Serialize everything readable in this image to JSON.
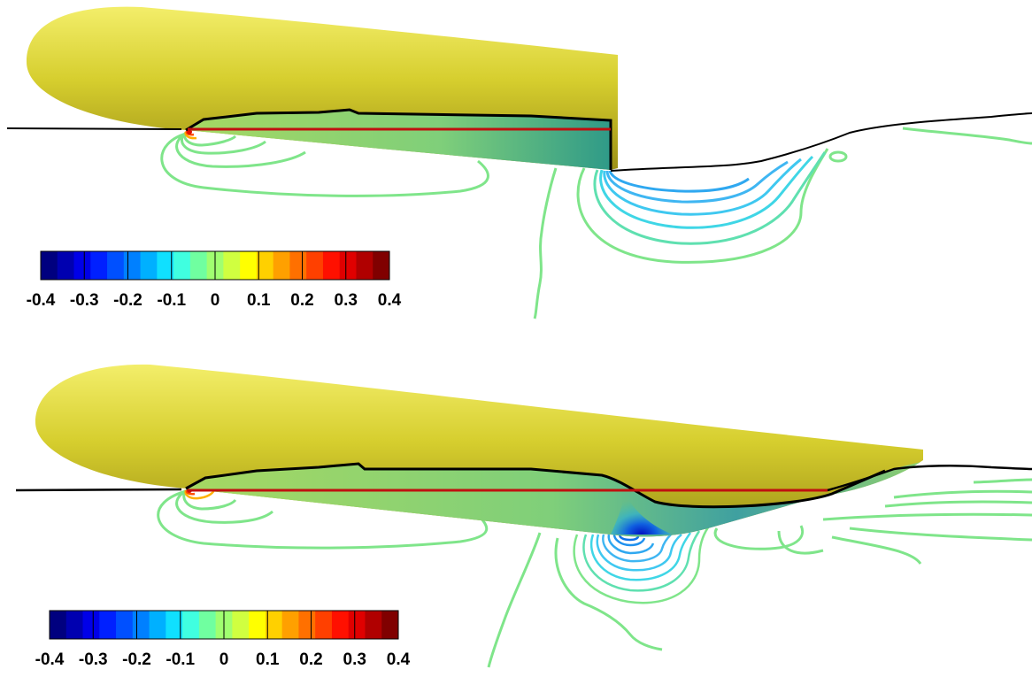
{
  "figure": {
    "panels": [
      {
        "id": "top",
        "colorbar": {
          "ticks": [
            "-0.4",
            "-0.3",
            "-0.2",
            "-0.1",
            "0",
            "0.1",
            "0.2",
            "0.3",
            "0.4"
          ],
          "colors": [
            "#00007f",
            "#0000b0",
            "#0000e8",
            "#0020ff",
            "#0050ff",
            "#0080ff",
            "#00b0ff",
            "#10e0ff",
            "#40ffe0",
            "#70ffa0",
            "#a0ff70",
            "#d0ff40",
            "#ffff00",
            "#ffd000",
            "#ffa000",
            "#ff7000",
            "#ff4000",
            "#ff1000",
            "#e00000",
            "#b00000",
            "#800000"
          ]
        }
      },
      {
        "id": "bottom",
        "colorbar": {
          "ticks": [
            "-0.4",
            "-0.3",
            "-0.2",
            "-0.1",
            "0",
            "0.1",
            "0.2",
            "0.3",
            "0.4"
          ],
          "colors": [
            "#00007f",
            "#0000b0",
            "#0000e8",
            "#0020ff",
            "#0050ff",
            "#0080ff",
            "#00b0ff",
            "#10e0ff",
            "#40ffe0",
            "#70ffa0",
            "#a0ff70",
            "#d0ff40",
            "#ffff00",
            "#ffd000",
            "#ffa000",
            "#ff7000",
            "#ff4000",
            "#ff1000",
            "#e00000",
            "#b00000",
            "#800000"
          ]
        }
      }
    ],
    "colors": {
      "hull": "#d9d235",
      "hull_highlight": "#f6f27a",
      "hull_shadow": "#a89a18",
      "waterline": "#c01010",
      "free_surface": "#000000",
      "contour_green": "#7fe58a",
      "contour_cyan": "#3fd6e6",
      "contour_blue": "#2f7fe0"
    }
  }
}
